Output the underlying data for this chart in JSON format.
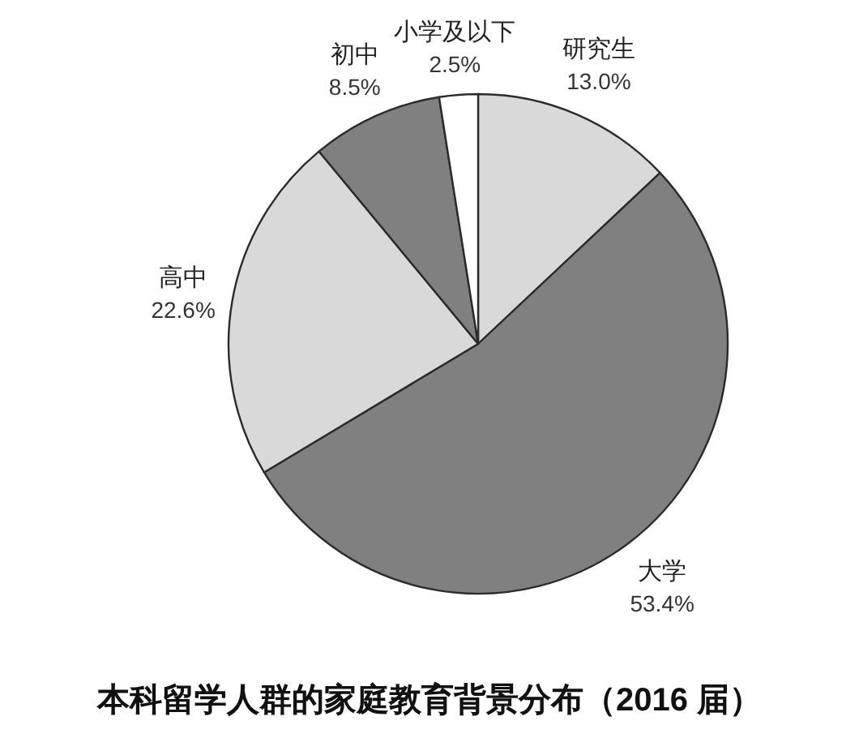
{
  "chart_data": {
    "type": "pie",
    "title": "本科留学人群的家庭教育背景分布（2016 届）",
    "categories": [
      "研究生",
      "大学",
      "高中",
      "初中",
      "小学及以下"
    ],
    "values": [
      13.0,
      53.4,
      22.6,
      8.5,
      2.5
    ],
    "colors": [
      "#d9d9d9",
      "#808080",
      "#d9d9d9",
      "#808080",
      "#ffffff"
    ],
    "value_labels": [
      "13.0%",
      "53.4%",
      "22.6%",
      "8.5%",
      "2.5%"
    ]
  }
}
